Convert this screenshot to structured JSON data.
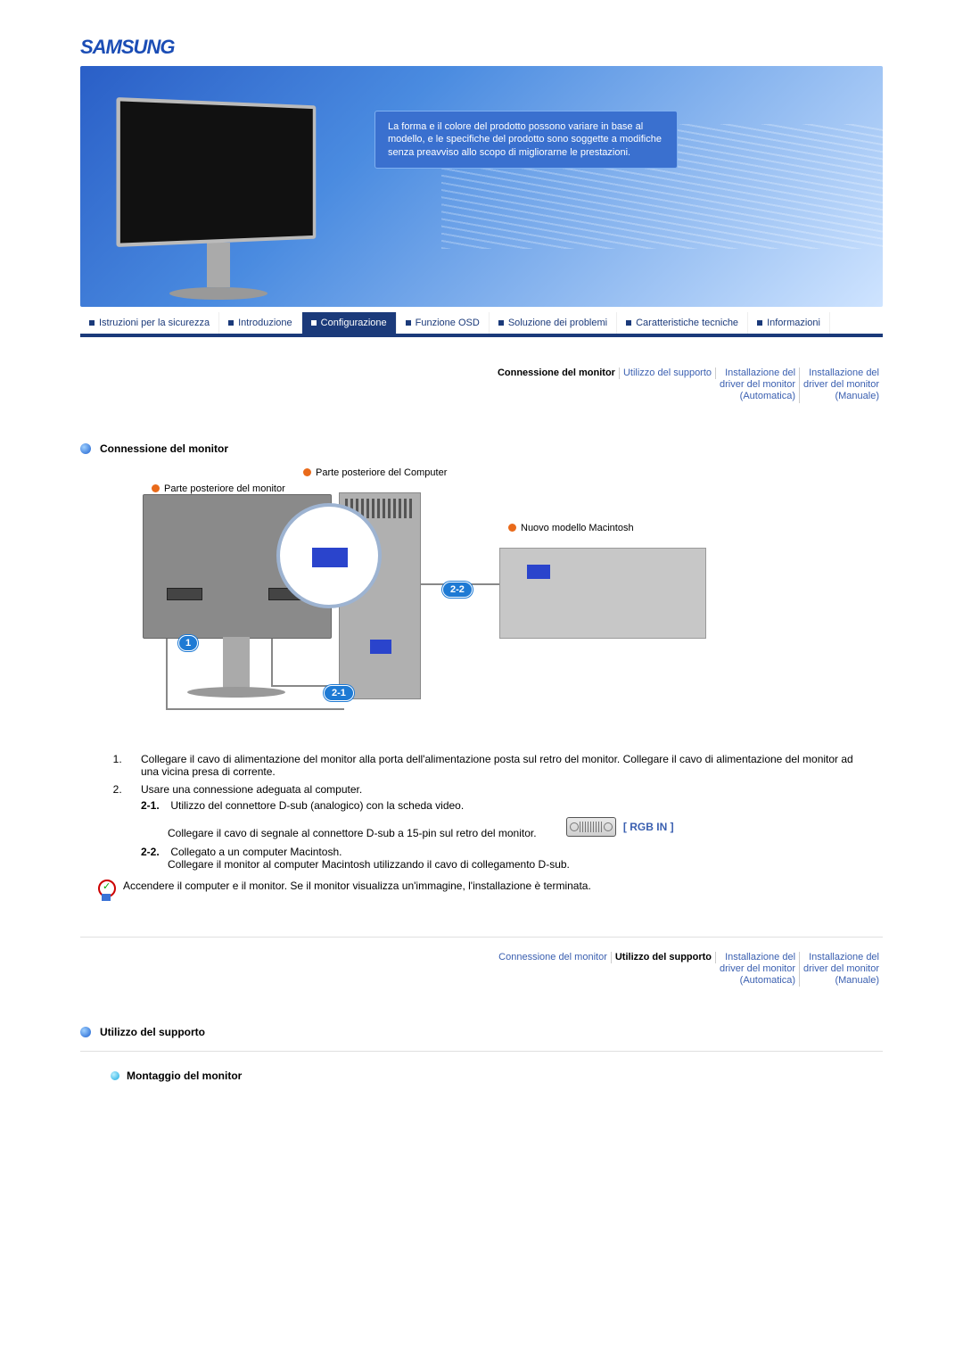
{
  "brand": "SAMSUNG",
  "banner_note": "La forma e il colore del prodotto possono variare in base al modello, e le specifiche del prodotto sono soggette a modifiche senza preavviso allo scopo di migliorarne le prestazioni.",
  "nav": {
    "items": [
      {
        "label": "Istruzioni per la sicurezza",
        "active": false
      },
      {
        "label": "Introduzione",
        "active": false
      },
      {
        "label": "Configurazione",
        "active": true
      },
      {
        "label": "Funzione OSD",
        "active": false
      },
      {
        "label": "Soluzione dei problemi",
        "active": false
      },
      {
        "label": "Caratteristiche tecniche",
        "active": false
      },
      {
        "label": "Informazioni",
        "active": false
      }
    ]
  },
  "subnav1": {
    "items": [
      {
        "label": "Connessione del monitor",
        "active": true
      },
      {
        "label": "Utilizzo del supporto",
        "active": false
      },
      {
        "label": "Installazione del\ndriver del monitor\n(Automatica)",
        "active": false
      },
      {
        "label": "Installazione del\ndriver del monitor\n(Manuale)",
        "active": false
      }
    ]
  },
  "section1_title": "Connessione del monitor",
  "diagram": {
    "label_computer": "Parte posteriore del Computer",
    "label_monitor": "Parte posteriore del monitor",
    "label_mac": "Nuovo modello Macintosh",
    "badge_1": "1",
    "badge_21": "2-1",
    "badge_22": "2-2"
  },
  "steps": {
    "s1": "Collegare il cavo di alimentazione del monitor alla porta dell'alimentazione posta sul retro del monitor. Collegare il cavo di alimentazione del monitor ad una vicina presa di corrente.",
    "s2": "Usare una connessione adeguata al computer.",
    "s2_1_num": "2-1.",
    "s2_1a": "Utilizzo del connettore D-sub (analogico) con la scheda video.",
    "s2_1b": "Collegare il cavo di segnale al connettore D-sub a 15-pin sul retro del monitor.",
    "rgb_label": "[ RGB IN ]",
    "s2_2_num": "2-2.",
    "s2_2a": "Collegato a un computer Macintosh.",
    "s2_2b": "Collegare il monitor al computer Macintosh utilizzando il cavo di collegamento D-sub."
  },
  "final_note": "Accendere il computer e il monitor. Se il monitor visualizza un'immagine, l'installazione è terminata.",
  "subnav2": {
    "items": [
      {
        "label": "Connessione del monitor",
        "active": false
      },
      {
        "label": "Utilizzo del supporto",
        "active": true
      },
      {
        "label": "Installazione del\ndriver del monitor\n(Automatica)",
        "active": false
      },
      {
        "label": "Installazione del\ndriver del monitor\n(Manuale)",
        "active": false
      }
    ]
  },
  "section2_title": "Utilizzo del supporto",
  "sub_title": "Montaggio del monitor",
  "colors": {
    "brand_blue": "#1b3a7a",
    "link_blue": "#3a5fb0"
  }
}
